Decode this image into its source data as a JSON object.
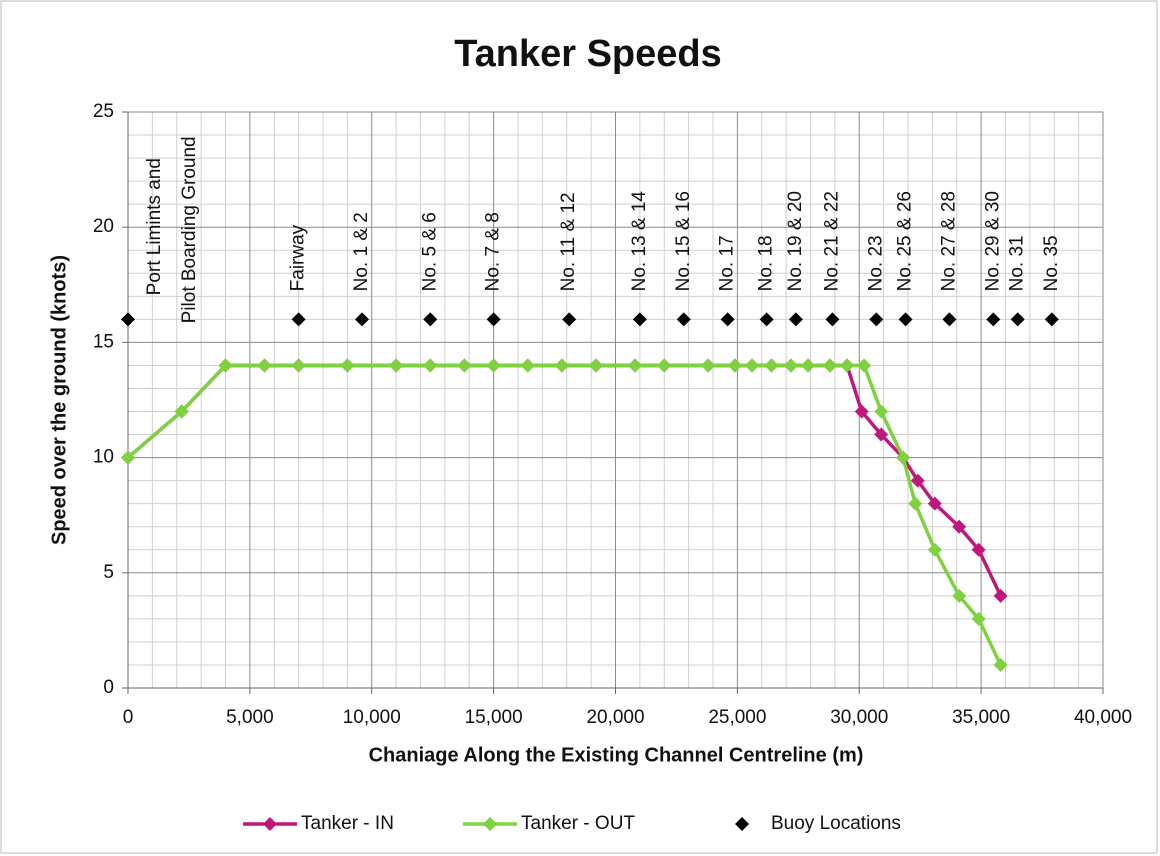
{
  "chart_data": {
    "type": "line",
    "title": "Tanker Speeds",
    "xlabel": "Chaniage Along the Existing Channel Centreline (m)",
    "ylabel": "Speed over the ground (knots)",
    "xlim": [
      0,
      40000
    ],
    "ylim": [
      0,
      25
    ],
    "xticks": [
      0,
      {
        "value": 5000,
        "label": "5,000"
      },
      {
        "value": 10000,
        "label": "10,000"
      },
      {
        "value": 15000,
        "label": "15,000"
      },
      {
        "value": 20000,
        "label": "20,000"
      },
      {
        "value": 25000,
        "label": "25,000"
      },
      {
        "value": 30000,
        "label": "30,000"
      },
      {
        "value": 35000,
        "label": "35,000"
      },
      {
        "value": 40000,
        "label": "40,000"
      }
    ],
    "yticks": [
      0,
      5,
      10,
      15,
      20,
      25
    ],
    "grid": true,
    "legend": "bottom",
    "series": [
      {
        "name": "Tanker - IN",
        "color": "#c0187a",
        "x": [
          0,
          2200,
          4000,
          5600,
          7000,
          9000,
          11000,
          12400,
          13800,
          15000,
          16400,
          17800,
          19200,
          20800,
          22000,
          23800,
          24900,
          25600,
          26400,
          27200,
          27900,
          28800,
          29500,
          30100,
          30900,
          31800,
          32400,
          33100,
          34100,
          34900,
          35800
        ],
        "values": [
          10,
          12,
          14,
          14,
          14,
          14,
          14,
          14,
          14,
          14,
          14,
          14,
          14,
          14,
          14,
          14,
          14,
          14,
          14,
          14,
          14,
          14,
          14,
          12,
          11,
          10,
          9,
          8,
          7,
          6,
          4
        ]
      },
      {
        "name": "Tanker - OUT",
        "color": "#7ed23f",
        "x": [
          0,
          2200,
          4000,
          5600,
          7000,
          9000,
          11000,
          12400,
          13800,
          15000,
          16400,
          17800,
          19200,
          20800,
          22000,
          23800,
          24900,
          25600,
          26400,
          27200,
          27900,
          28800,
          29500,
          30200,
          30900,
          31800,
          32300,
          33100,
          34100,
          34900,
          35800
        ],
        "values": [
          10,
          12,
          14,
          14,
          14,
          14,
          14,
          14,
          14,
          14,
          14,
          14,
          14,
          14,
          14,
          14,
          14,
          14,
          14,
          14,
          14,
          14,
          14,
          14,
          12,
          10,
          8,
          6,
          4,
          3,
          1
        ]
      },
      {
        "name": "Buoy Locations",
        "color": "#000000",
        "type": "scatter",
        "x": [
          0,
          7000,
          9600,
          12400,
          15000,
          18100,
          21000,
          22800,
          24600,
          26200,
          27400,
          28900,
          30700,
          31900,
          33700,
          35500,
          36500,
          37900
        ],
        "values": [
          16,
          16,
          16,
          16,
          16,
          16,
          16,
          16,
          16,
          16,
          16,
          16,
          16,
          16,
          16,
          16,
          16,
          16
        ],
        "labels": [
          [
            "Port Limints and",
            "Pilot Boarding Ground"
          ],
          "Fairway",
          "No. 1 & 2",
          "No. 5 & 6",
          "No. 7 & 8",
          "No. 11 & 12",
          "No. 13 & 14",
          "No. 15 & 16",
          "No. 17",
          "No. 18",
          "No. 19 & 20",
          "No. 21 & 22",
          "No. 23",
          "No. 25 & 26",
          "No. 27 & 28",
          "No. 29 & 30",
          "No. 31",
          "No. 35"
        ]
      }
    ]
  }
}
